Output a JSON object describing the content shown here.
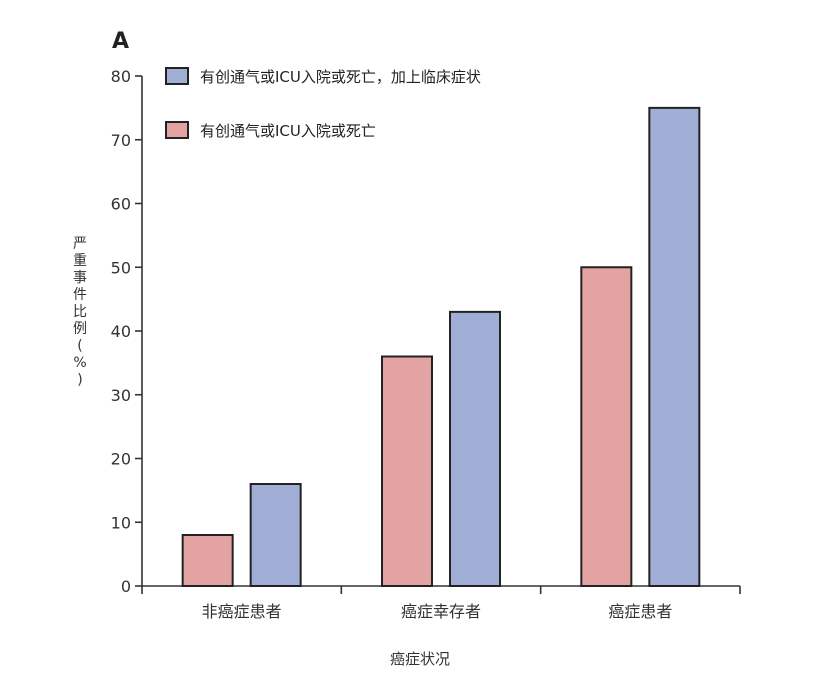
{
  "chart_data": {
    "type": "bar",
    "panel_label": "A",
    "categories": [
      "非癌症患者",
      "癌症幸存者",
      "癌症患者"
    ],
    "series": [
      {
        "name": "有创通气或ICU入院或死亡",
        "color": "#e3a3a3",
        "values": [
          8,
          36,
          50
        ]
      },
      {
        "name": "有创通气或ICU入院或死亡，加上临床症状",
        "color": "#a0aed6",
        "values": [
          16,
          43,
          75
        ]
      }
    ],
    "legend_order": [
      1,
      0
    ],
    "xlabel": "癌症状况",
    "ylabel": "严重事件比例(%)",
    "ylim": [
      0,
      80
    ],
    "yticks": [
      0,
      10,
      20,
      30,
      40,
      50,
      60,
      70,
      80
    ],
    "grid": false,
    "legend_position": "top-left"
  }
}
